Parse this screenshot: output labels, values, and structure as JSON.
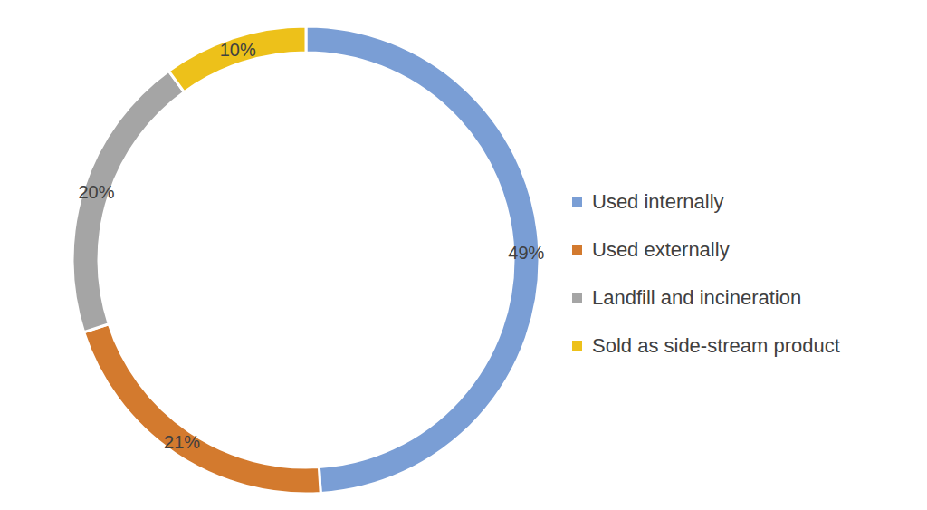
{
  "chart_data": {
    "type": "pie",
    "categories": [
      "Used internally",
      "Used externally",
      "Landfill and incineration",
      "Sold as side-stream product"
    ],
    "values": [
      49,
      21,
      20,
      10
    ],
    "value_labels": [
      "49%",
      "21%",
      "20%",
      "10%"
    ],
    "colors": [
      "#7a9ed5",
      "#d37a2e",
      "#a5a5a5",
      "#edc11a"
    ],
    "data_labels": true,
    "legend": "right"
  }
}
